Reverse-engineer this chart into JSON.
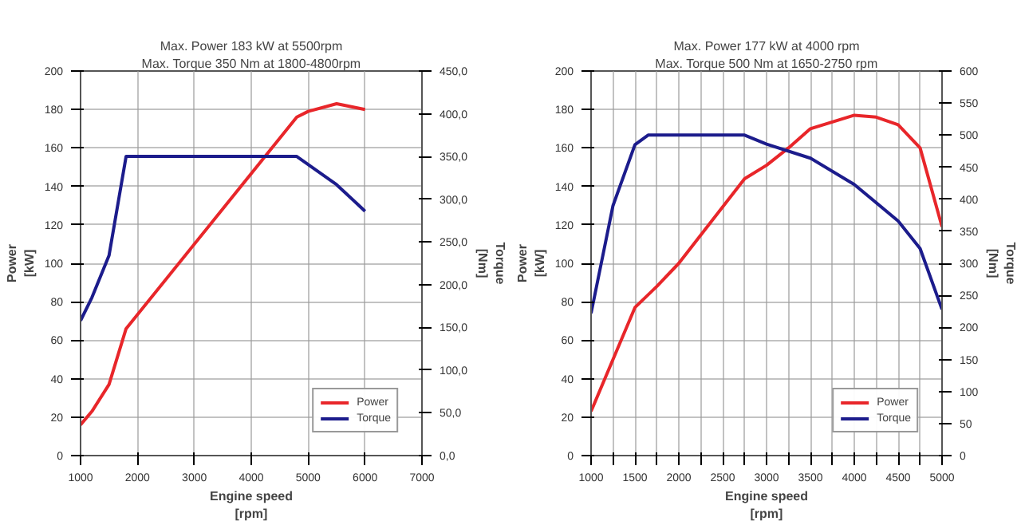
{
  "chart_data": [
    {
      "type": "line",
      "title": "Max. Power 183 kW at 5500rpm",
      "subtitle": "Max. Torque 350 Nm at 1800-4800rpm",
      "xlabel": "Engine speed\n[rpm]",
      "ylabel": "Power\n[kW]",
      "y2label": "Torque\n[Nm]",
      "xlim": [
        1000,
        7000
      ],
      "xticks": [
        1000,
        2000,
        3000,
        4000,
        5000,
        6000,
        7000
      ],
      "ylim": [
        0,
        200
      ],
      "yticks": [
        0,
        20,
        40,
        60,
        80,
        100,
        120,
        140,
        160,
        180,
        200
      ],
      "y2lim": [
        0,
        450
      ],
      "y2ticks": [
        {
          "value": 0,
          "label": "0,0"
        },
        {
          "value": 50,
          "label": "50,0"
        },
        {
          "value": 100,
          "label": "100,0"
        },
        {
          "value": 150,
          "label": "150,0"
        },
        {
          "value": 200,
          "label": "200,0"
        },
        {
          "value": 250,
          "label": "250,0"
        },
        {
          "value": 300,
          "label": "300,0"
        },
        {
          "value": 350,
          "label": "350,0"
        },
        {
          "value": 400,
          "label": "400,0"
        },
        {
          "value": 450,
          "label": "450,0"
        }
      ],
      "grid": true,
      "legend": "bottom right",
      "series": [
        {
          "name": "Power",
          "color": "#e8262a",
          "x": [
            1000,
            1200,
            1500,
            1800,
            4800,
            5000,
            5500,
            6000
          ],
          "values": [
            16,
            23,
            37,
            66,
            176,
            179,
            183,
            180
          ]
        },
        {
          "name": "Torque",
          "color": "#1c1c8c",
          "axis": "y2",
          "x": [
            1000,
            1200,
            1500,
            1800,
            4800,
            5500,
            6000
          ],
          "values": [
            158,
            185,
            234,
            350,
            350,
            317,
            286
          ]
        }
      ]
    },
    {
      "type": "line",
      "title": "Max. Power 177 kW at 4000 rpm",
      "subtitle": "Max. Torque 500 Nm at 1650-2750 rpm",
      "xlabel": "Engine speed\n[rpm]",
      "ylabel": "Power\n[kW]",
      "y2label": "Torque\n[Nm]",
      "xlim": [
        1000,
        5000
      ],
      "xticks": [
        1000,
        {
          "value": 1250,
          "label": null
        },
        1500,
        {
          "value": 1750,
          "label": null
        },
        2000,
        {
          "value": 2250,
          "label": null
        },
        2500,
        {
          "value": 2750,
          "label": null
        },
        3000,
        {
          "value": 3250,
          "label": null
        },
        3500,
        {
          "value": 3750,
          "label": null
        },
        4000,
        {
          "value": 4250,
          "label": null
        },
        4500,
        {
          "value": 4750,
          "label": null
        },
        5000
      ],
      "ylim": [
        0,
        200
      ],
      "yticks": [
        0,
        20,
        40,
        60,
        80,
        100,
        120,
        140,
        160,
        180,
        200
      ],
      "y2lim": [
        0,
        600
      ],
      "y2ticks": [
        0,
        50,
        100,
        150,
        200,
        250,
        300,
        350,
        400,
        450,
        500,
        550,
        600
      ],
      "grid": true,
      "legend": "bottom right",
      "series": [
        {
          "name": "Power",
          "color": "#e8262a",
          "x": [
            1000,
            1250,
            1500,
            1750,
            2000,
            2750,
            3000,
            3250,
            3500,
            4000,
            4250,
            4500,
            4750,
            5000
          ],
          "values": [
            23,
            50,
            77,
            88,
            100,
            144,
            151,
            160,
            170,
            177,
            176,
            172,
            160,
            119
          ]
        },
        {
          "name": "Torque",
          "color": "#1c1c8c",
          "axis": "y2",
          "x": [
            1000,
            1250,
            1500,
            1650,
            2750,
            3000,
            3500,
            4000,
            4500,
            4750,
            5000
          ],
          "values": [
            222,
            390,
            485,
            500,
            500,
            486,
            464,
            423,
            366,
            323,
            228
          ]
        }
      ]
    }
  ]
}
